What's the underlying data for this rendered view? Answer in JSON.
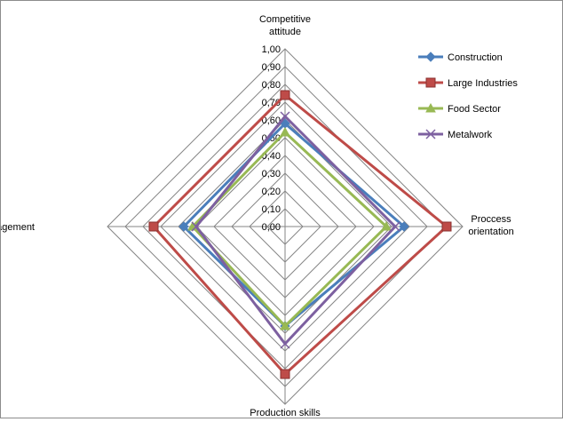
{
  "chart_data": {
    "type": "radar",
    "axes": [
      [
        "Competitive",
        "attitude"
      ],
      [
        "Proccess",
        "orientation"
      ],
      [
        "Production skills"
      ],
      [
        "Cost management"
      ]
    ],
    "ticks": [
      "0,00",
      "0,10",
      "0,20",
      "0,30",
      "0,40",
      "0,50",
      "0,60",
      "0,70",
      "0,80",
      "0,90",
      "1,00"
    ],
    "range": [
      0,
      1
    ],
    "grid": true,
    "legend_position": "top-right",
    "series": [
      {
        "name": "Construction",
        "color": "#4a7ebb",
        "marker": "diamond",
        "values": [
          0.58,
          0.67,
          0.56,
          0.57
        ]
      },
      {
        "name": "Large Industries",
        "color": "#be4b48",
        "marker": "square",
        "values": [
          0.74,
          0.91,
          0.83,
          0.74
        ]
      },
      {
        "name": "Food Sector",
        "color": "#98b954",
        "marker": "triangle",
        "values": [
          0.53,
          0.57,
          0.56,
          0.52
        ]
      },
      {
        "name": "Metalwork",
        "color": "#7d60a0",
        "marker": "x",
        "values": [
          0.62,
          0.62,
          0.66,
          0.5
        ]
      }
    ]
  }
}
